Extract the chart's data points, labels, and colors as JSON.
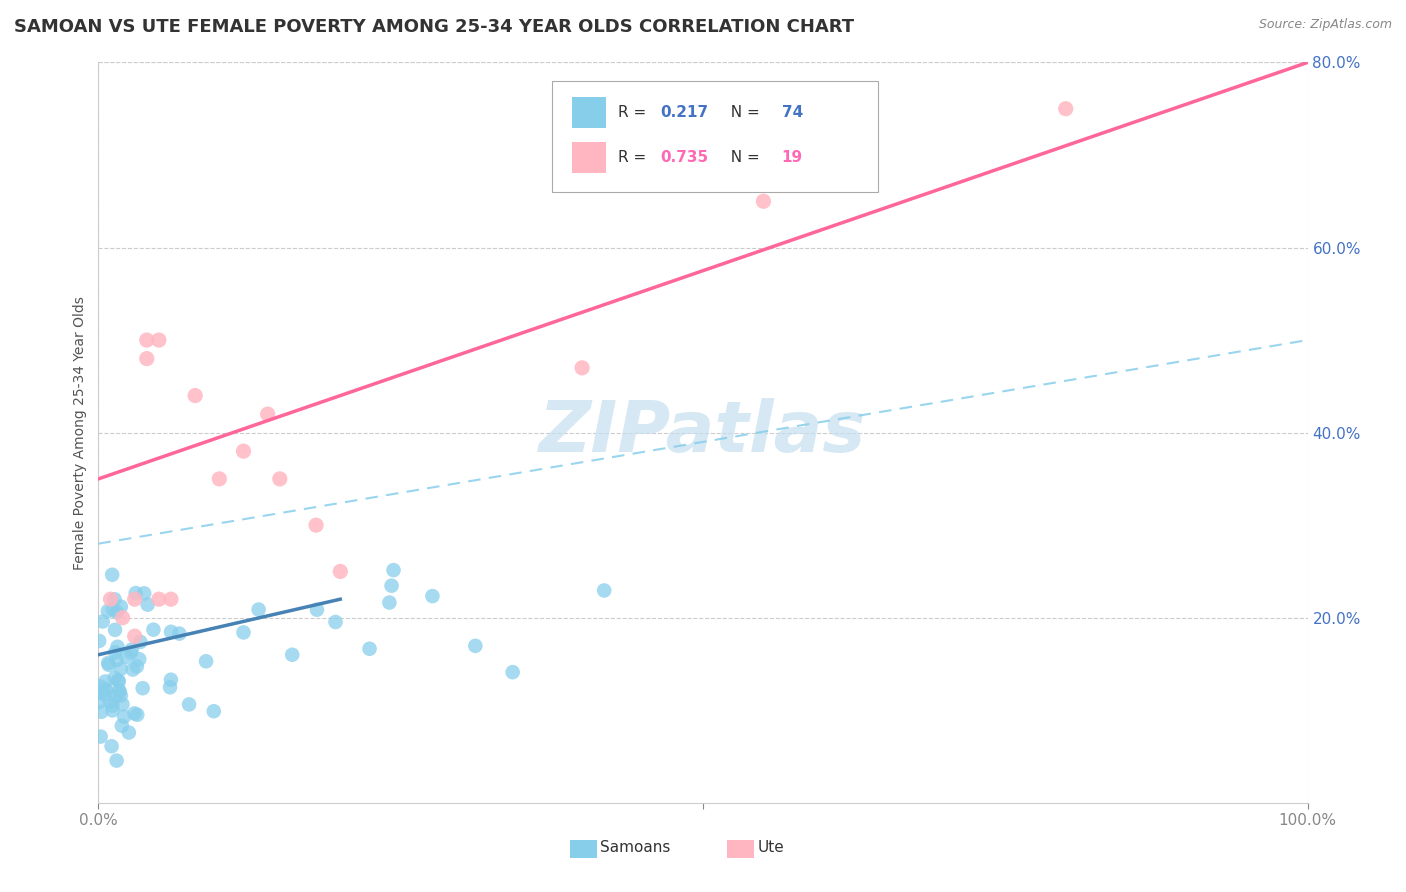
{
  "title": "SAMOAN VS UTE FEMALE POVERTY AMONG 25-34 YEAR OLDS CORRELATION CHART",
  "source": "Source: ZipAtlas.com",
  "ylabel": "Female Poverty Among 25-34 Year Olds",
  "samoans_R": 0.217,
  "samoans_N": 74,
  "ute_R": 0.735,
  "ute_N": 19,
  "samoans_color": "#87CEEB",
  "ute_color": "#FFB6C1",
  "samoans_line_color": "#4682B4",
  "ute_line_color": "#FF6699",
  "dash_line_color": "#87CEEB",
  "xlim": [
    0,
    100
  ],
  "ylim": [
    0,
    80
  ],
  "xticks": [
    0,
    100
  ],
  "xtick_labels": [
    "0.0%",
    "100.0%"
  ],
  "yticks": [
    20,
    40,
    60,
    80
  ],
  "ytick_labels": [
    "20.0%",
    "40.0%",
    "60.0%",
    "80.0%"
  ],
  "grid_yticks": [
    20,
    40,
    60,
    80
  ],
  "watermark_text": "ZIPatlas",
  "watermark_color": "#c5dff0",
  "title_fontsize": 13,
  "source_fontsize": 9,
  "tick_fontsize": 11,
  "ylabel_fontsize": 10,
  "legend_fontsize": 11,
  "samoans_line_x0": 0,
  "samoans_line_x1": 20,
  "samoans_line_y0": 16,
  "samoans_line_y1": 22,
  "ute_line_x0": 0,
  "ute_line_x1": 100,
  "ute_line_y0": 35,
  "ute_line_y1": 80,
  "dash_line_x0": 0,
  "dash_line_x1": 100,
  "dash_line_y0": 28,
  "dash_line_y1": 50
}
